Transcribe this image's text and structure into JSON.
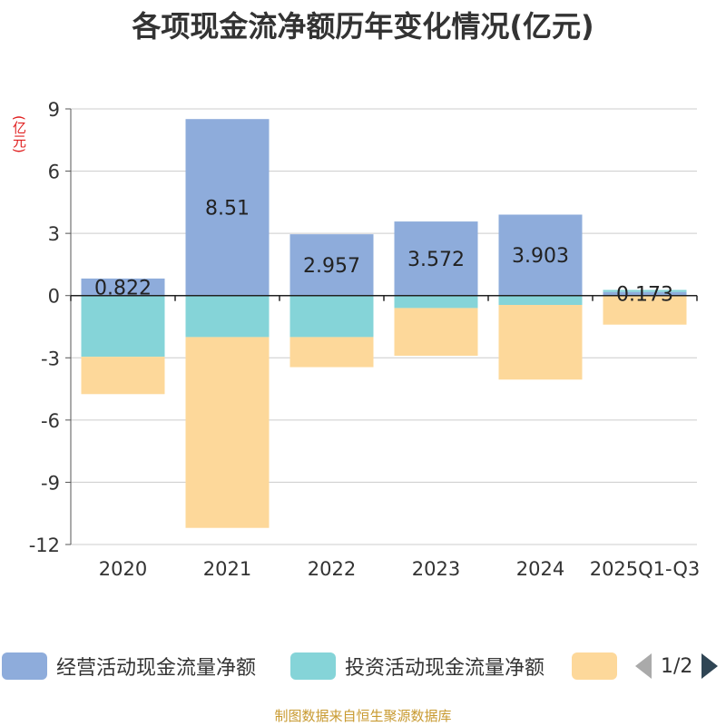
{
  "chart_data": {
    "type": "bar",
    "stacked": true,
    "title": "各项现金流净额历年变化情况(亿元)",
    "ylabel": "(亿元)",
    "ylim": [
      -12,
      9
    ],
    "yticks": [
      9,
      6,
      3,
      0,
      -3,
      -6,
      -9,
      -12
    ],
    "categories": [
      "2020",
      "2021",
      "2022",
      "2023",
      "2024",
      "2025Q1-Q3"
    ],
    "series": [
      {
        "name": "经营活动现金流量净额",
        "color": "#8eacdb",
        "values": [
          0.822,
          8.51,
          2.957,
          3.572,
          3.903,
          0.173
        ],
        "labels": [
          "0.822",
          "8.51",
          "2.957",
          "3.572",
          "3.903",
          "0.173"
        ]
      },
      {
        "name": "投资活动现金流量净额",
        "color": "#85d4d8",
        "values": [
          -2.95,
          -2.0,
          -2.0,
          -0.6,
          -0.45,
          0.1
        ],
        "labels": []
      },
      {
        "name": "",
        "color": "#fdd89a",
        "values": [
          -1.8,
          -9.2,
          -1.45,
          -2.3,
          -3.6,
          -1.4
        ],
        "labels": []
      }
    ],
    "legend_position": "bottom"
  },
  "legend": {
    "page": "1/2"
  },
  "source": "制图数据来自恒生聚源数据库"
}
